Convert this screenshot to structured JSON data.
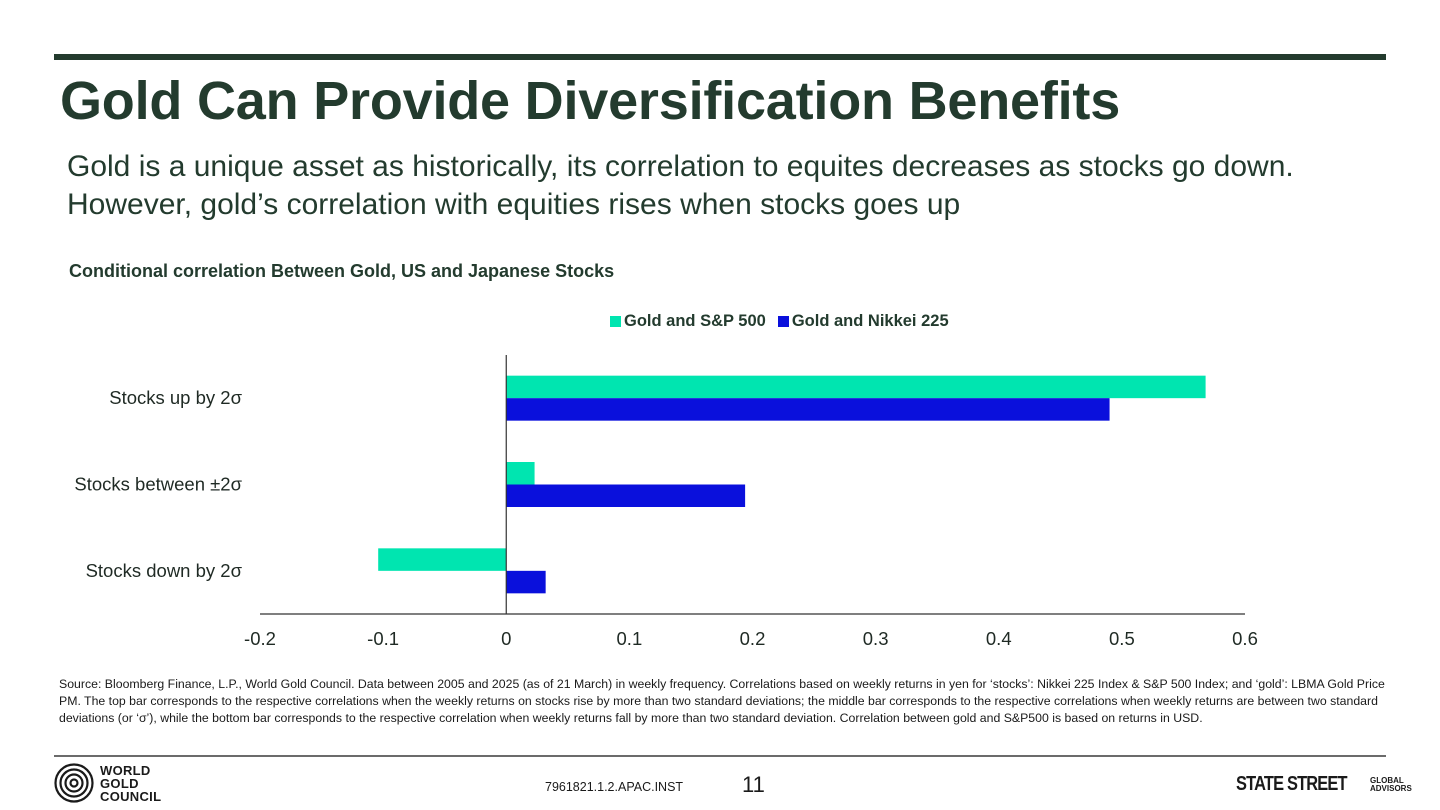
{
  "slide": {
    "title": "Gold Can Provide Diversification Benefits",
    "subtitle": "Gold is a unique asset as historically, its correlation to equites decreases as stocks go down. However, gold’s correlation with equities rises when stocks goes up",
    "source": "Source: Bloomberg Finance, L.P., World Gold Council. Data between 2005 and 2025 (as of 21 March) in weekly frequency. Correlations based on weekly returns in yen for ‘stocks’: Nikkei 225 Index & S&P 500 Index; and ‘gold’: LBMA Gold Price PM. The top bar corresponds to the respective correlations when the weekly returns on stocks rise by more than two standard deviations; the middle bar corresponds to the respective correlations when weekly returns are between two standard deviations (or ‘σ’), while the bottom bar corresponds to the respective correlation when weekly returns fall by more than two standard deviation. Correlation between gold and S&P500 is based on returns in USD.",
    "doc_code": "7961821.1.2.APAC.INST",
    "page_number": "11",
    "logo_left_lines": [
      "WORLD",
      "GOLD",
      "COUNCIL"
    ],
    "logo_right_main": "STATE STREET",
    "logo_right_sub": [
      "GLOBAL",
      "ADVISORS"
    ]
  },
  "chart_data": {
    "type": "bar",
    "orientation": "horizontal",
    "title": "Conditional correlation Between Gold, US and Japanese Stocks",
    "categories": [
      "Stocks up by 2σ",
      "Stocks between ±2σ",
      "Stocks down by 2σ"
    ],
    "series": [
      {
        "name": "Gold and S&P 500",
        "color": "#00e5b0",
        "values": [
          0.568,
          0.023,
          -0.104
        ]
      },
      {
        "name": "Gold and Nikkei 225",
        "color": "#0a10dc",
        "values": [
          0.49,
          0.194,
          0.032
        ]
      }
    ],
    "xlim": [
      -0.2,
      0.6
    ],
    "xticks": [
      "-0.2",
      "-0.1",
      "0",
      "0.1",
      "0.2",
      "0.3",
      "0.4",
      "0.5",
      "0.6"
    ],
    "grid": false,
    "legend_position": "top-center"
  }
}
